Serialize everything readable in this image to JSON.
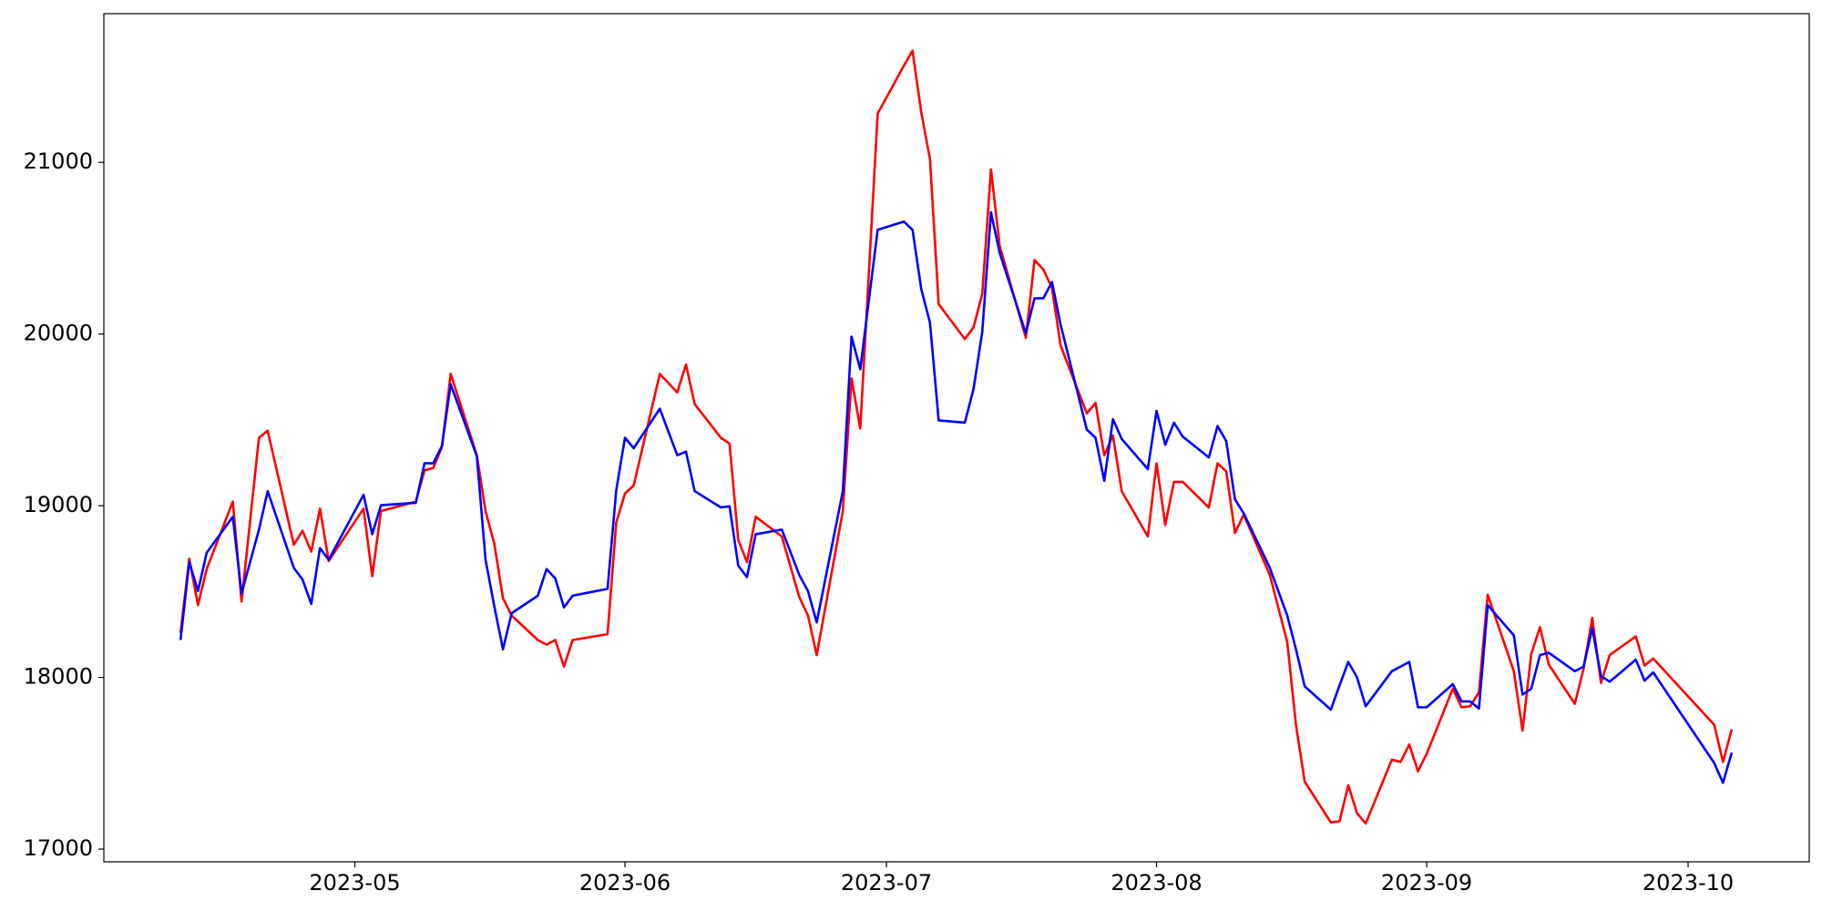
{
  "chart_data": {
    "type": "line",
    "x": [
      101,
      102,
      103,
      104,
      107,
      108,
      110,
      111,
      114,
      115,
      116,
      117,
      118,
      122,
      123,
      124,
      128,
      129,
      130,
      131,
      132,
      135,
      136,
      137,
      138,
      139,
      142,
      143,
      144,
      145,
      146,
      150,
      151,
      152,
      153,
      156,
      158,
      159,
      160,
      163,
      164,
      165,
      166,
      167,
      170,
      172,
      173,
      174,
      177,
      178,
      179,
      181,
      184,
      185,
      186,
      187,
      188,
      191,
      192,
      193,
      194,
      195,
      198,
      199,
      200,
      201,
      202,
      205,
      206,
      207,
      208,
      209,
      212,
      213,
      214,
      215,
      216,
      219,
      220,
      221,
      222,
      223,
      226,
      228,
      229,
      230,
      233,
      234,
      235,
      236,
      237,
      240,
      241,
      242,
      243,
      244,
      247,
      248,
      249,
      250,
      251,
      254,
      255,
      256,
      257,
      258,
      261,
      262,
      263,
      264,
      265,
      268,
      269,
      270,
      277,
      278,
      279
    ],
    "series": [
      {
        "color": "#ff0000",
        "values": [
          18259,
          18692,
          18421,
          18631,
          19024,
          18442,
          19396,
          19437,
          18773,
          18854,
          18733,
          18983,
          18678,
          18983,
          18590,
          18969,
          19024,
          19206,
          19220,
          19342,
          19768,
          19294,
          18969,
          18780,
          18462,
          18360,
          18218,
          18191,
          18218,
          18063,
          18218,
          18252,
          18902,
          19071,
          19118,
          19768,
          19660,
          19822,
          19592,
          19396,
          19362,
          18800,
          18672,
          18936,
          18821,
          18469,
          18360,
          18130,
          18969,
          19741,
          19450,
          21284,
          21562,
          21650,
          21291,
          21020,
          20174,
          19971,
          20039,
          20235,
          20959,
          20513,
          19978,
          20431,
          20377,
          20269,
          19931,
          19538,
          19599,
          19294,
          19409,
          19085,
          18821,
          19247,
          18888,
          19139,
          19139,
          18990,
          19247,
          19200,
          18841,
          18949,
          18597,
          18205,
          17724,
          17393,
          17156,
          17162,
          17372,
          17210,
          17149,
          17521,
          17508,
          17609,
          17453,
          17555,
          17934,
          17826,
          17832,
          17914,
          18482,
          18036,
          17690,
          18137,
          18293,
          18076,
          17846,
          18049,
          18347,
          17968,
          18130,
          18239,
          18069,
          18110,
          17724,
          17508,
          17697
        ]
      },
      {
        "color": "#0000ff",
        "values": [
          18218,
          18672,
          18503,
          18726,
          18936,
          18489,
          18861,
          19085,
          18638,
          18570,
          18428,
          18753,
          18685,
          19064,
          18834,
          19003,
          19017,
          19247,
          19247,
          19349,
          19707,
          19288,
          18685,
          18415,
          18164,
          18374,
          18476,
          18631,
          18577,
          18408,
          18476,
          18516,
          19091,
          19396,
          19335,
          19565,
          19294,
          19315,
          19085,
          18990,
          18997,
          18651,
          18584,
          18834,
          18861,
          18597,
          18503,
          18320,
          19085,
          19985,
          19795,
          20607,
          20655,
          20607,
          20262,
          20066,
          19497,
          19484,
          19680,
          20012,
          20709,
          20472,
          20005,
          20208,
          20208,
          20303,
          20052,
          19443,
          19396,
          19145,
          19504,
          19389,
          19213,
          19552,
          19355,
          19484,
          19403,
          19281,
          19464,
          19376,
          19037,
          18956,
          18638,
          18360,
          18164,
          17948,
          17812,
          17954,
          18090,
          18001,
          17832,
          18036,
          18063,
          18090,
          17826,
          17826,
          17961,
          17860,
          17860,
          17819,
          18421,
          18245,
          17900,
          17934,
          18130,
          18144,
          18036,
          18063,
          18286,
          18008,
          17975,
          18103,
          17981,
          18029,
          17501,
          17386,
          17562
        ]
      }
    ],
    "xlim": [
      92.2,
      287.9
    ],
    "xticks": [
      {
        "value": 121,
        "label": "2023-05"
      },
      {
        "value": 152,
        "label": "2023-06"
      },
      {
        "value": 182,
        "label": "2023-07"
      },
      {
        "value": 213,
        "label": "2023-08"
      },
      {
        "value": 244,
        "label": "2023-09"
      },
      {
        "value": 274,
        "label": "2023-10"
      }
    ],
    "ylim": [
      16926,
      21866
    ],
    "yticks": [
      17000,
      18000,
      19000,
      20000,
      21000
    ],
    "grid": false
  }
}
